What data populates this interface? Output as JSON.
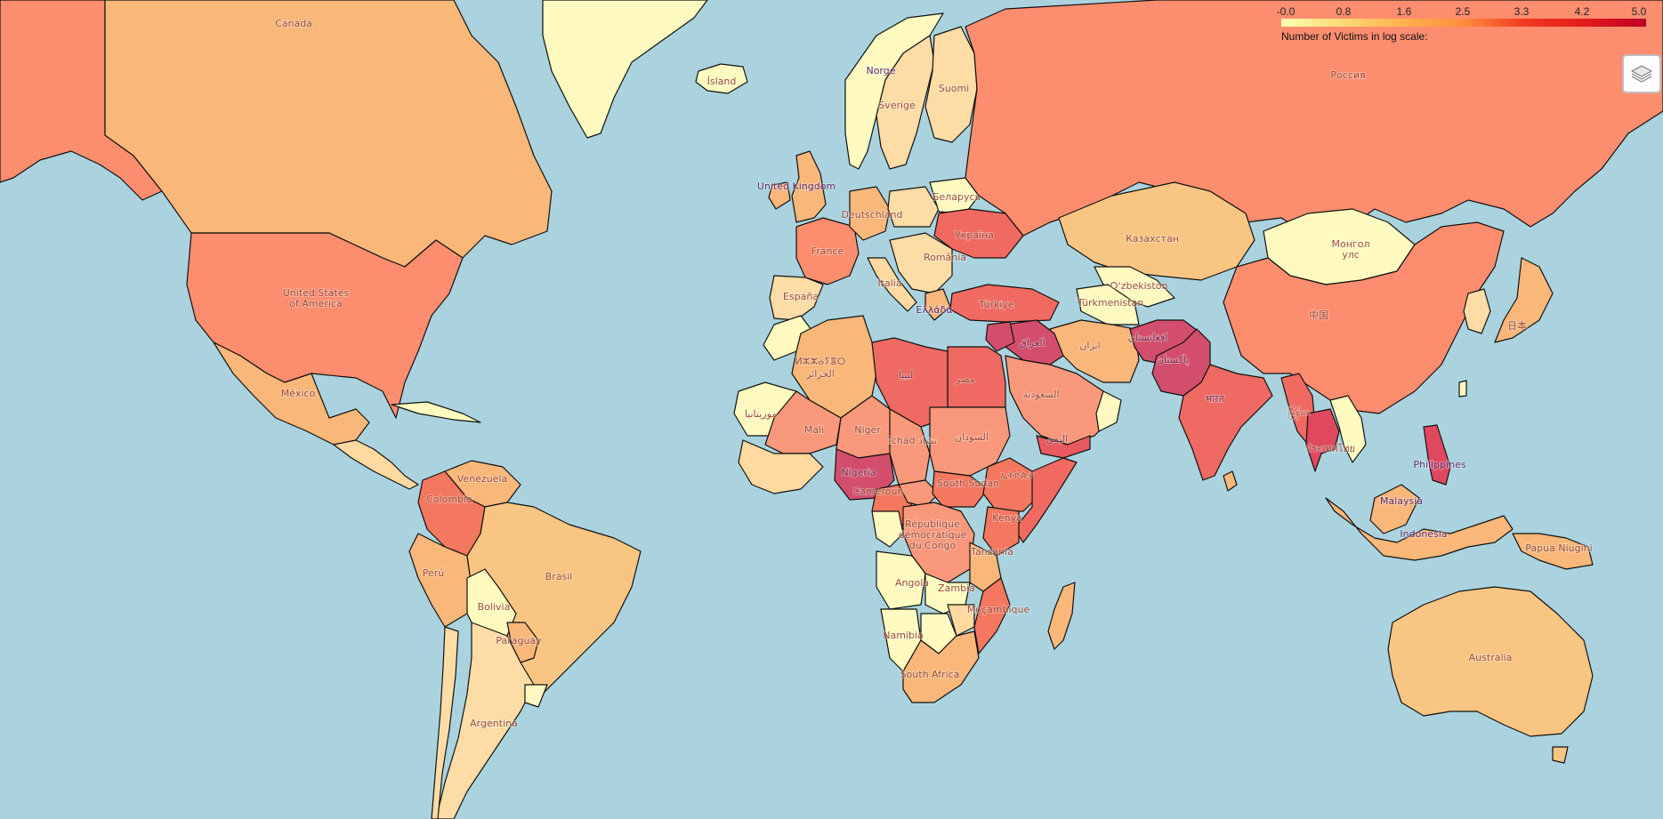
{
  "legend": {
    "title": "Number of Victims in log scale:",
    "ticks": [
      "-0.0",
      "0.8",
      "1.6",
      "2.5",
      "3.3",
      "4.2",
      "5.0"
    ],
    "colors": [
      "#ffffb2",
      "#fed976",
      "#feb24c",
      "#fd8d3c",
      "#f03b20",
      "#e31a1c",
      "#bd0026"
    ]
  },
  "controls": {
    "layers": "layers-icon"
  },
  "labels": {
    "canada": "Canada",
    "usa1": "United States",
    "usa2": "of America",
    "mexico": "México",
    "venezuela": "Venezuela",
    "colombia": "Colombia",
    "peru": "Perú",
    "brasil": "Brasil",
    "bolivia": "Bolivia",
    "paraguay": "Paraguay",
    "argentina": "Argentina",
    "island": "Ísland",
    "norge": "Norge",
    "sverige": "Sverige",
    "suomi": "Suomi",
    "uk": "United Kingdom",
    "france": "France",
    "espana": "España",
    "deutschland": "Deutschland",
    "belarus": "Беларусь",
    "ukraina": "Україна",
    "romania": "România",
    "italia": "Italia",
    "ellada": "Ελλάδα",
    "turkiye": "Türkiye",
    "rossiya": "Россия",
    "kazakhstan": "Казахстан",
    "uzbekistan": "Oʻzbekiston",
    "turkmenistan": "Türkmenistan",
    "mongol1": "Монгол",
    "mongol2": "улс",
    "china": "中国",
    "japan": "日本",
    "iraq": "العراق",
    "iran": "ایران",
    "afghanistan": "افغانستان",
    "pakistan": "پاکستان",
    "india": "भारत",
    "saudi": "السعودية",
    "yemen": "اليمن",
    "egypt": "مصر",
    "libya": "ليبيا",
    "algeria1": "ⵍⵣⵣⴰⵢⴻⵔ",
    "algeria2": "الجزائر",
    "mauritania": "موريتانيا",
    "mali": "Mali",
    "niger": "Niger",
    "chad": "Tchad تشاد",
    "sudan": "السودان",
    "nigeria": "Nigeria",
    "cameroun": "Cameroun",
    "southsudan": "South Sudan",
    "ethiopia": "ኢትዮጵያ",
    "kenya": "Kenya",
    "drc1": "République",
    "drc2": "démocratique",
    "drc3": "du Congo",
    "tanzania": "Tanzania",
    "angola": "Angola",
    "zambia": "Zambia",
    "mozambique": "Moçambique",
    "namibia": "Namibia",
    "southafrica": "South Africa",
    "philippines": "Philippines",
    "malaysia": "Malaysia",
    "indonesia": "Indonesia",
    "thailand": "ประเทศไทย",
    "myanmar": "မြန်မာ",
    "papua": "Papua Niugini",
    "australia": "Australia"
  }
}
